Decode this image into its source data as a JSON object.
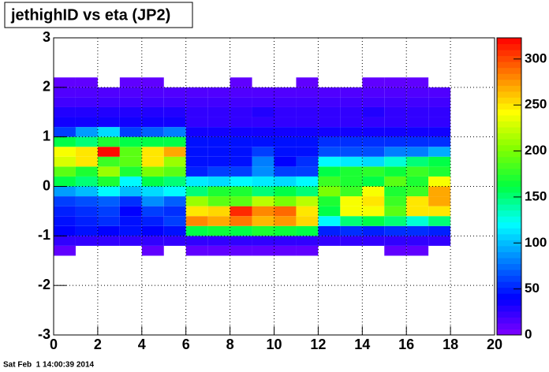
{
  "chart_data": {
    "type": "heatmap",
    "title": "jethighID vs eta (JP2)",
    "footer": "Sat Feb  1 14:00:39 2014",
    "xbins": [
      0,
      1,
      2,
      3,
      4,
      5,
      6,
      7,
      8,
      9,
      10,
      11,
      12,
      13,
      14,
      15,
      16,
      17,
      18
    ],
    "ybins": [
      -1.4,
      -1.2,
      -1.0,
      -0.8,
      -0.6,
      -0.4,
      -0.2,
      0,
      0.2,
      0.4,
      0.6,
      0.8,
      1.0,
      1.2,
      1.4,
      1.6,
      1.8,
      2.0,
      2.2
    ],
    "values": [
      [
        10,
        0,
        0,
        0,
        10,
        0,
        10,
        10,
        10,
        10,
        10,
        10,
        0,
        0,
        0,
        10,
        10,
        0
      ],
      [
        25,
        25,
        25,
        25,
        25,
        25,
        25,
        25,
        25,
        25,
        25,
        25,
        25,
        25,
        25,
        25,
        25,
        25
      ],
      [
        40,
        45,
        40,
        45,
        40,
        45,
        160,
        165,
        160,
        170,
        165,
        160,
        50,
        55,
        50,
        55,
        55,
        50
      ],
      [
        45,
        50,
        55,
        45,
        50,
        60,
        280,
        270,
        285,
        265,
        275,
        255,
        120,
        150,
        160,
        150,
        130,
        150
      ],
      [
        50,
        55,
        60,
        40,
        60,
        55,
        250,
        255,
        310,
        280,
        290,
        250,
        160,
        240,
        240,
        190,
        250,
        250
      ],
      [
        60,
        65,
        70,
        55,
        85,
        70,
        210,
        190,
        190,
        220,
        200,
        220,
        170,
        240,
        250,
        180,
        250,
        270
      ],
      [
        90,
        100,
        120,
        100,
        110,
        120,
        150,
        170,
        170,
        150,
        160,
        150,
        200,
        180,
        240,
        170,
        180,
        270
      ],
      [
        160,
        150,
        170,
        120,
        160,
        150,
        115,
        110,
        120,
        115,
        110,
        120,
        180,
        170,
        160,
        190,
        170,
        240
      ],
      [
        190,
        170,
        210,
        170,
        200,
        190,
        50,
        60,
        60,
        85,
        60,
        60,
        160,
        170,
        175,
        165,
        180,
        170
      ],
      [
        230,
        250,
        180,
        190,
        250,
        210,
        45,
        45,
        45,
        80,
        40,
        55,
        120,
        115,
        110,
        130,
        150,
        160
      ],
      [
        240,
        250,
        320,
        190,
        250,
        270,
        45,
        45,
        45,
        60,
        45,
        45,
        65,
        65,
        65,
        80,
        80,
        95
      ],
      [
        160,
        150,
        170,
        160,
        160,
        160,
        45,
        45,
        45,
        45,
        45,
        45,
        55,
        55,
        55,
        55,
        55,
        55
      ],
      [
        60,
        90,
        110,
        60,
        70,
        80,
        35,
        35,
        35,
        35,
        35,
        35,
        35,
        35,
        35,
        35,
        35,
        35
      ],
      [
        35,
        35,
        35,
        35,
        35,
        35,
        25,
        25,
        25,
        25,
        25,
        25,
        25,
        25,
        25,
        25,
        25,
        25
      ],
      [
        30,
        30,
        30,
        30,
        30,
        30,
        25,
        25,
        25,
        30,
        25,
        25,
        25,
        25,
        30,
        25,
        25,
        25
      ],
      [
        20,
        20,
        20,
        20,
        20,
        20,
        20,
        20,
        20,
        20,
        20,
        20,
        20,
        20,
        20,
        20,
        20,
        20
      ],
      [
        15,
        15,
        15,
        15,
        15,
        15,
        15,
        15,
        15,
        15,
        15,
        15,
        15,
        15,
        15,
        15,
        15,
        15
      ],
      [
        10,
        10,
        0,
        10,
        10,
        0,
        0,
        0,
        10,
        0,
        0,
        10,
        0,
        0,
        10,
        10,
        10,
        0
      ]
    ],
    "xlim": [
      0,
      20
    ],
    "xticks": [
      0,
      2,
      4,
      6,
      8,
      10,
      12,
      14,
      16,
      18,
      20
    ],
    "ylim": [
      -3,
      3
    ],
    "yticks": [
      -3,
      -2,
      -1,
      0,
      1,
      2,
      3
    ],
    "zlim": [
      0,
      323
    ],
    "zticks": [
      0,
      50,
      100,
      150,
      200,
      250,
      300
    ],
    "palette": [
      "#8000ff",
      "#0000ff",
      "#0080ff",
      "#00ffff",
      "#00ff40",
      "#80ff00",
      "#ffff00",
      "#ff8000",
      "#ff0000"
    ],
    "grid": true
  }
}
